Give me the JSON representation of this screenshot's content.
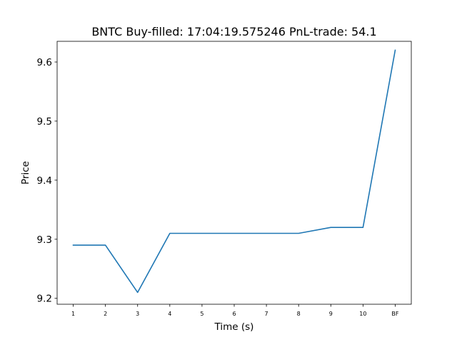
{
  "chart_data": {
    "type": "line",
    "title": "BNTC  Buy-filled:  17:04:19.575246  PnL-trade:  54.1",
    "xlabel": "Time (s)",
    "ylabel": "Price",
    "categories": [
      "1",
      "2",
      "3",
      "4",
      "5",
      "6",
      "7",
      "8",
      "9",
      "10",
      "BF"
    ],
    "series": [
      {
        "name": "Price",
        "color": "#1f77b4",
        "values": [
          9.29,
          9.29,
          9.21,
          9.31,
          9.31,
          9.31,
          9.31,
          9.31,
          9.32,
          9.32,
          9.62
        ]
      }
    ],
    "ylim": [
      9.19,
      9.635
    ],
    "yticks": [
      9.2,
      9.3,
      9.4,
      9.5,
      9.6
    ],
    "ytick_labels": [
      "9.2",
      "9.3",
      "9.4",
      "9.5",
      "9.6"
    ],
    "grid": false,
    "legend": "none"
  }
}
